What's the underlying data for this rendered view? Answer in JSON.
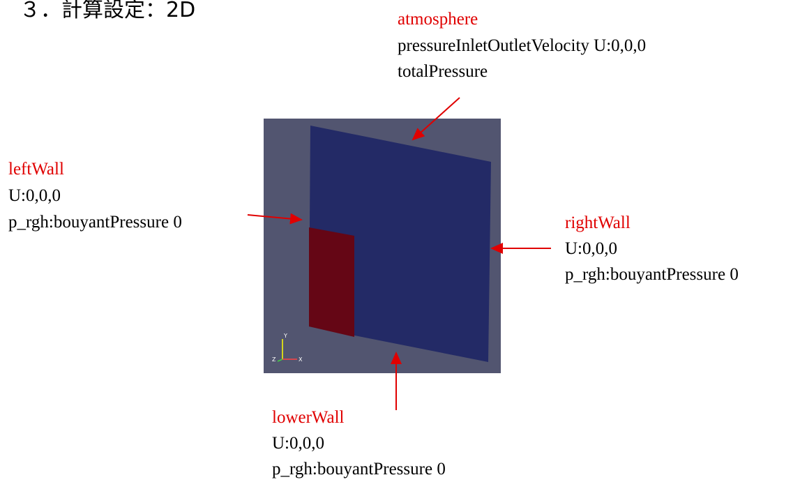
{
  "title": "３．計算設定：2D",
  "annotations": [
    {
      "name": "atmosphere",
      "lines": [
        "pressureInletOutletVelocity U:0,0,0",
        "totalPressure"
      ]
    },
    {
      "name": "leftWall",
      "lines": [
        "U:0,0,0",
        "p_rgh:bouyantPressure 0"
      ]
    },
    {
      "name": "rightWall",
      "lines": [
        "U:0,0,0",
        "p_rgh:bouyantPressure 0"
      ]
    },
    {
      "name": "lowerWall",
      "lines": [
        "U:0,0,0",
        "p_rgh:bouyantPressure 0"
      ]
    }
  ],
  "axes": {
    "y": "Y",
    "z": "Z",
    "x": "X"
  }
}
